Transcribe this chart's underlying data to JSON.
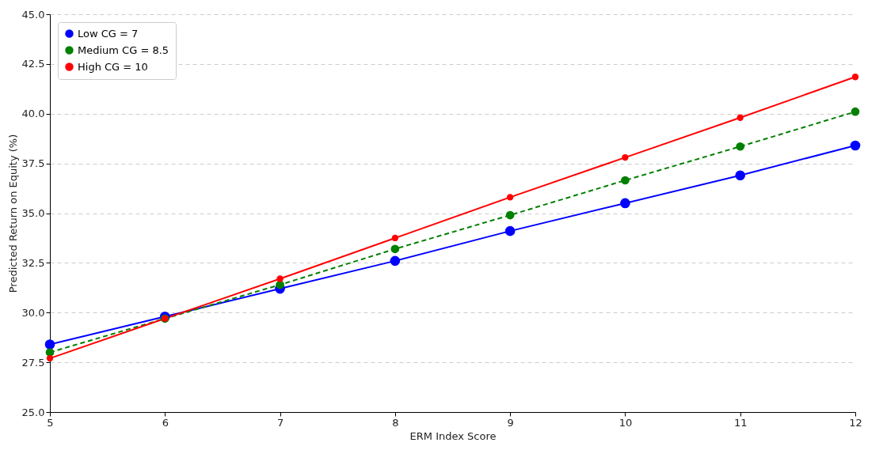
{
  "chart_data": {
    "type": "line",
    "xlabel": "ERM Index Score",
    "ylabel": "Predicted Return on Equity (%)",
    "x": [
      5,
      6,
      7,
      8,
      9,
      10,
      11,
      12
    ],
    "series": [
      {
        "name": "Low CG = 7",
        "color": "#0000ff",
        "line_style": "solid",
        "values": [
          28.4,
          29.8,
          31.2,
          32.6,
          34.1,
          35.5,
          36.9,
          38.4
        ]
      },
      {
        "name": "Medium CG = 8.5",
        "color": "#008000",
        "line_style": "dashed",
        "values": [
          28.0,
          29.7,
          31.4,
          33.2,
          34.9,
          36.65,
          38.35,
          40.1
        ]
      },
      {
        "name": "High CG = 10",
        "color": "#ff0000",
        "line_style": "solid",
        "values": [
          27.7,
          29.7,
          31.7,
          33.75,
          35.8,
          37.8,
          39.8,
          41.85
        ]
      }
    ],
    "xlim": [
      5,
      12
    ],
    "xticks": [
      5,
      6,
      7,
      8,
      9,
      10,
      11,
      12
    ],
    "ylim": [
      25,
      45
    ],
    "yticks": [
      {
        "value": 25,
        "label": "25.0"
      },
      {
        "value": 27.5,
        "label": "27.5"
      },
      {
        "value": 30,
        "label": "30.0"
      },
      {
        "value": 32.5,
        "label": "32.5"
      },
      {
        "value": 35,
        "label": "35.0"
      },
      {
        "value": 37.5,
        "label": "37.5"
      },
      {
        "value": 40,
        "label": "40.0"
      },
      {
        "value": 42.5,
        "label": "42.5"
      },
      {
        "value": 45,
        "label": "45.0"
      }
    ],
    "grid": "y",
    "legend": "top left",
    "marker": "circle"
  }
}
